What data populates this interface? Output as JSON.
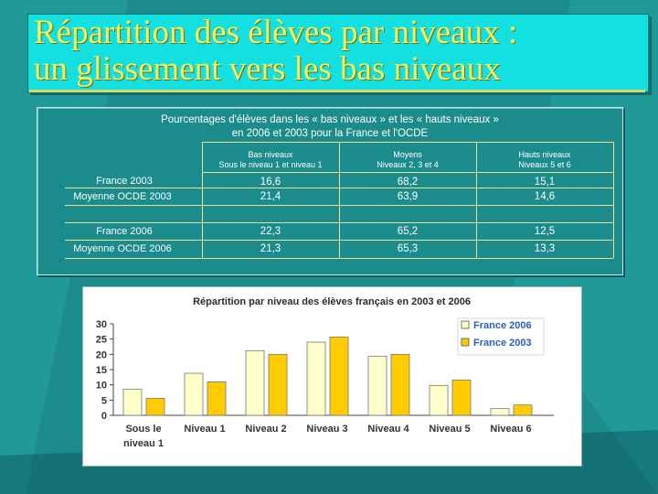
{
  "slide": {
    "title_line1": "Répartition des élèves par  niveaux :",
    "title_line2": "un glissement vers les bas niveaux"
  },
  "table": {
    "title_line1": "Pourcentages d'élèves dans les « bas niveaux » et les « hauts niveaux »",
    "title_line2": "en 2006 et 2003 pour la France et l'OCDE",
    "headers": [
      {
        "line1": "Bas niveaux",
        "line2": "Sous le niveau 1 et niveau 1"
      },
      {
        "line1": "Moyens",
        "line2": "Niveaux 2, 3 et 4"
      },
      {
        "line1": "Hauts niveaux",
        "line2": "Niveaux 5 et 6"
      }
    ],
    "rows": [
      {
        "label": "France 2003",
        "values": [
          "16,6",
          "68,2",
          "15,1"
        ]
      },
      {
        "label": "Moyenne OCDE 2003",
        "values": [
          "21,4",
          "63,9",
          "14,6"
        ]
      },
      {
        "label": "France 2006",
        "values": [
          "22,3",
          "65,2",
          "12,5"
        ]
      },
      {
        "label": "Moyenne OCDE 2006",
        "values": [
          "21,3",
          "65,3",
          "13,3"
        ]
      }
    ]
  },
  "colors": {
    "background": "#1c8b8b",
    "title_box": "#13e0e0",
    "title_text": "#f2f25a",
    "table_lines": "#e9e58e",
    "series_2006": "#ffffcc",
    "series_2003": "#ffcc00"
  },
  "chart_data": {
    "type": "bar",
    "title": "Répartition par niveau des élèves français en 2003 et 2006",
    "categories": [
      [
        "Sous le",
        "niveau 1"
      ],
      [
        "Niveau 1"
      ],
      [
        "Niveau  2"
      ],
      [
        "Niveau  3"
      ],
      [
        "Niveau  4"
      ],
      [
        "Niveau  5"
      ],
      [
        "Niveau  6"
      ]
    ],
    "series": [
      {
        "name": "France 2006",
        "color": "#ffffcc",
        "values": [
          8.6,
          13.8,
          21.2,
          24.0,
          19.4,
          9.8,
          2.2
        ]
      },
      {
        "name": "France 2003",
        "color": "#ffcc00",
        "values": [
          5.6,
          11.0,
          20.0,
          25.7,
          20.0,
          11.6,
          3.4
        ]
      }
    ],
    "yticks": [
      0,
      5,
      10,
      15,
      20,
      25,
      30
    ],
    "ylim": [
      0,
      30
    ],
    "legend_position": "top-right",
    "grid": false
  }
}
